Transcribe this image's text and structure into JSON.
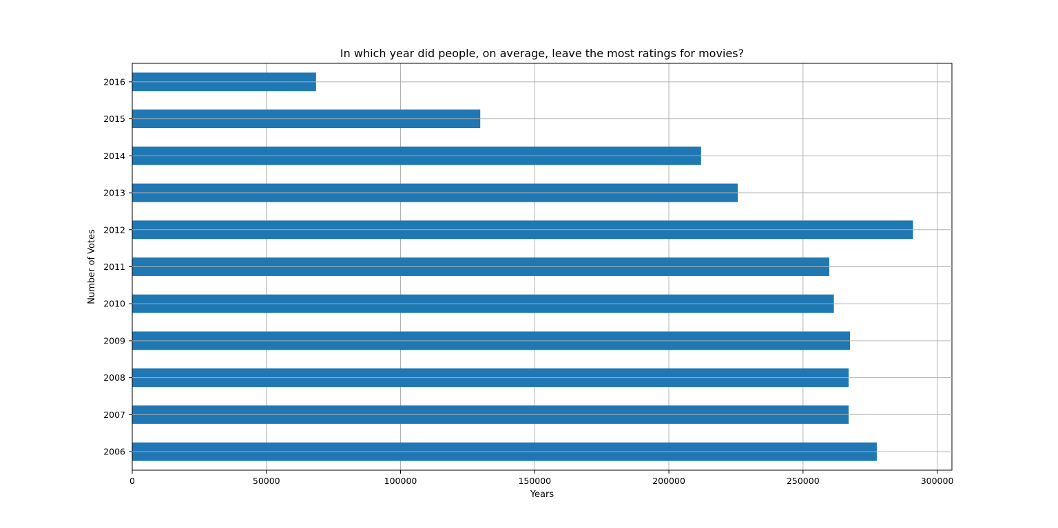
{
  "chart_data": {
    "type": "bar",
    "orientation": "horizontal",
    "title": "In which year did people, on average, leave the most ratings for movies?",
    "xlabel": "Years",
    "ylabel": "Number of Votes",
    "categories": [
      "2006",
      "2007",
      "2008",
      "2009",
      "2010",
      "2011",
      "2012",
      "2013",
      "2014",
      "2015",
      "2016"
    ],
    "values": [
      277500,
      267000,
      267000,
      267500,
      261500,
      259800,
      291000,
      225700,
      212000,
      129700,
      68500
    ],
    "xlim": [
      0,
      305500
    ],
    "xticks": [
      0,
      50000,
      100000,
      150000,
      200000,
      250000,
      300000
    ],
    "xtick_labels": [
      "0",
      "50000",
      "100000",
      "150000",
      "200000",
      "250000",
      "300000"
    ],
    "grid": true,
    "bar_color": "#1f77b4",
    "grid_color": "#b0b0b0"
  }
}
